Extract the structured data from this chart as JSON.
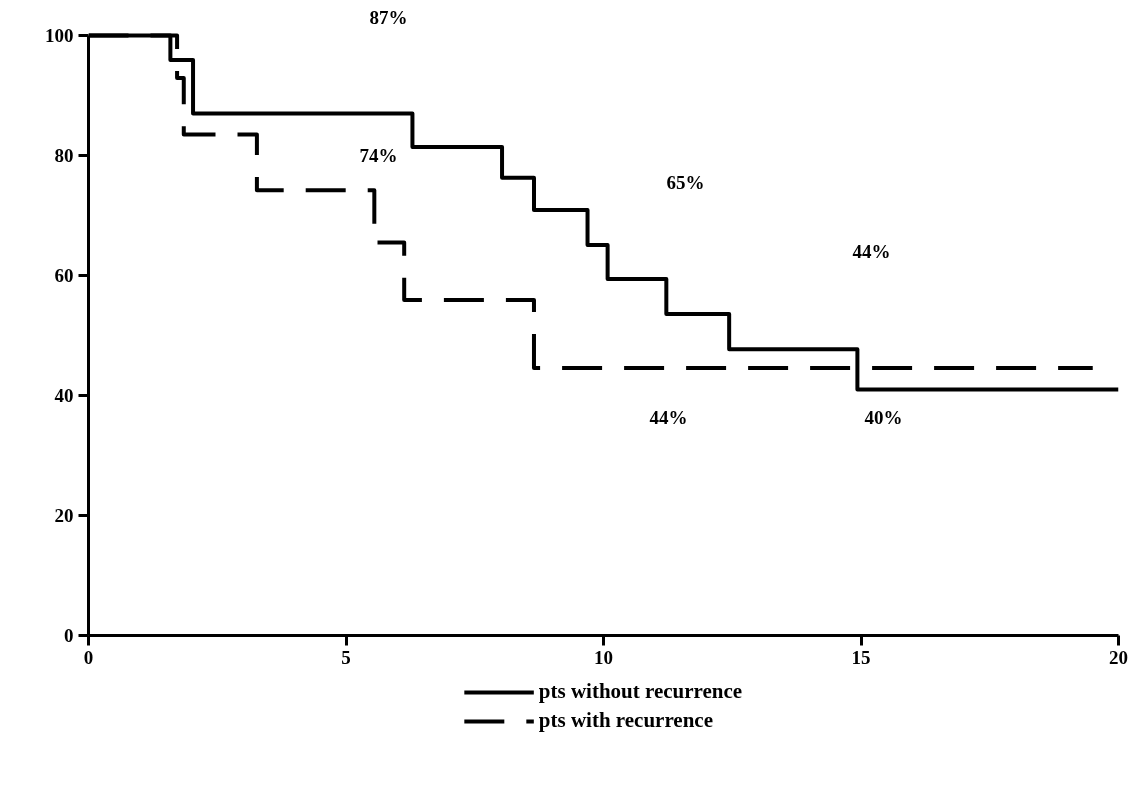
{
  "chart_data": {
    "type": "step",
    "xlim": [
      0,
      20
    ],
    "ylim": [
      0,
      100
    ],
    "xticks": [
      0,
      5,
      10,
      15,
      20
    ],
    "yticks": [
      0,
      20,
      40,
      60,
      80,
      100
    ],
    "grid": false,
    "legend": "bottom",
    "marker": "none",
    "series": [
      {
        "name": "pts without recurrence",
        "color": "#000000",
        "line_style": "solid",
        "x": [
          0,
          1.59,
          2.03,
          6.29,
          8.03,
          8.65,
          9.69,
          10.08,
          11.22,
          12.44,
          14.93,
          20
        ],
        "values": [
          100,
          95.9,
          87,
          81.4,
          76.3,
          70.9,
          65.1,
          59.4,
          53.6,
          47.7,
          41.0,
          41.0
        ]
      },
      {
        "name": "pts with recurrence",
        "color": "#000000",
        "line_style": "dashed",
        "x": [
          0,
          1.72,
          1.85,
          3.27,
          5.55,
          6.13,
          8.65,
          19.5
        ],
        "values": [
          100,
          92.9,
          83.5,
          74.2,
          65.5,
          55.9,
          44.6,
          44.6
        ]
      }
    ],
    "annotations": [
      "87%",
      "74%",
      "65%",
      "44%",
      "44%",
      "40%"
    ]
  }
}
